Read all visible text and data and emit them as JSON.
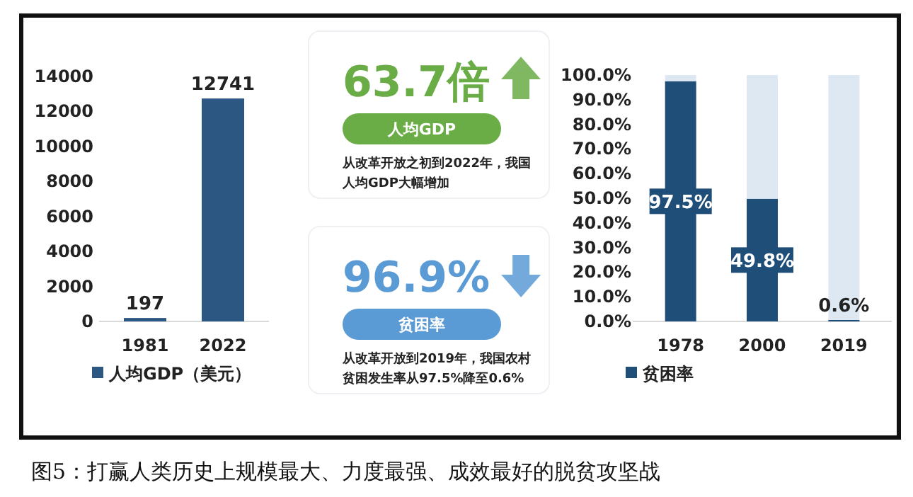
{
  "chart_data": [
    {
      "type": "bar",
      "categories": [
        "1981",
        "2022"
      ],
      "series": [
        {
          "name": "人均GDP（美元）",
          "color": "#2d5783",
          "values": [
            197,
            12741
          ]
        }
      ],
      "ylim": [
        0,
        14000
      ],
      "yticks": [
        0,
        2000,
        4000,
        6000,
        8000,
        10000,
        12000,
        14000
      ],
      "data_labels": true,
      "legend": "bottom"
    },
    {
      "type": "other",
      "annotations": [
        "63.7倍",
        "人均GDP",
        "从改革开放之初到2022年，我国人均GDP大幅增加",
        "96.9%",
        "贫困率",
        "从改革开放到2019年，我国农村贫困发生率从97.5%降至0.6%",
        "图5：打赢人类历史上规模最大、力度最强、成效最好的脱贫攻坚战"
      ]
    },
    {
      "type": "bar",
      "categories": [
        "1978",
        "2000",
        "2019"
      ],
      "stacked": true,
      "series": [
        {
          "name": "贫困率",
          "color": "#1f4e79",
          "values": [
            97.5,
            49.8,
            0.6
          ],
          "value_labels": [
            "97.5%",
            "49.8%",
            "0.6%"
          ]
        },
        {
          "color": "#dde8f3",
          "values": [
            2.5,
            50.2,
            99.4
          ]
        }
      ],
      "ylim": [
        0,
        100
      ],
      "yticks": [
        {
          "value": 0,
          "label": "0.0%"
        },
        {
          "value": 10,
          "label": "10.0%"
        },
        {
          "value": 20,
          "label": "20.0%"
        },
        {
          "value": 30,
          "label": "30.0%"
        },
        {
          "value": 40,
          "label": "40.0%"
        },
        {
          "value": 50,
          "label": "50.0%"
        },
        {
          "value": 60,
          "label": "60.0%"
        },
        {
          "value": 70,
          "label": "70.0%"
        },
        {
          "value": 80,
          "label": "80.0%"
        },
        {
          "value": 90,
          "label": "90.0%"
        },
        {
          "value": 100,
          "label": "100.0%"
        }
      ],
      "legend": "bottom"
    }
  ]
}
